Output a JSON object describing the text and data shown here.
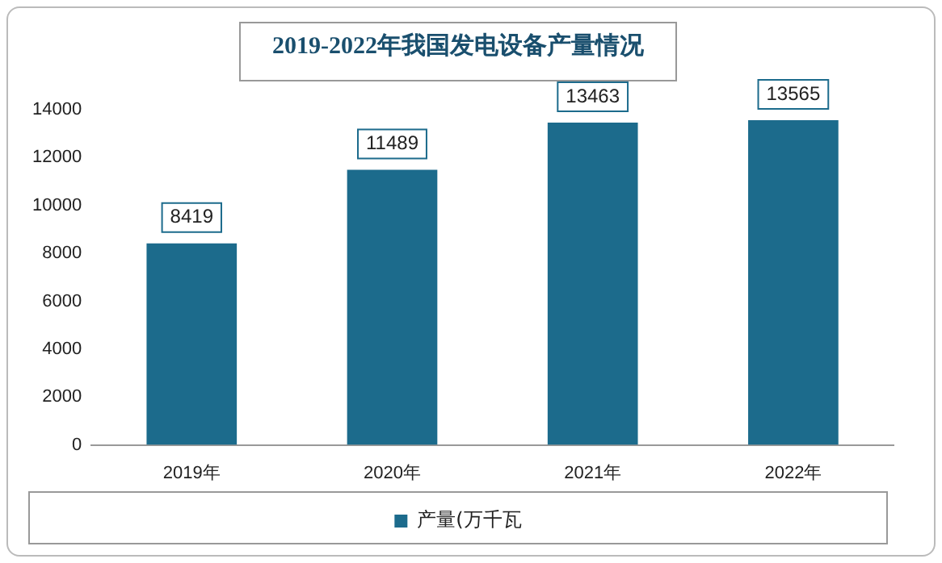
{
  "chart_data": {
    "type": "bar",
    "title": "2019-2022年我国发电设备产量情况",
    "categories": [
      "2019年",
      "2020年",
      "2021年",
      "2022年"
    ],
    "series": [
      {
        "name": "产量(万千瓦",
        "color": "#1c6b8c",
        "values": [
          8419,
          11489,
          13463,
          13565
        ]
      }
    ],
    "ylim": [
      0,
      14000
    ],
    "yticks": [
      0,
      2000,
      4000,
      6000,
      8000,
      10000,
      12000,
      14000
    ],
    "grid": false,
    "legend": "bottom",
    "data_labels": true
  }
}
